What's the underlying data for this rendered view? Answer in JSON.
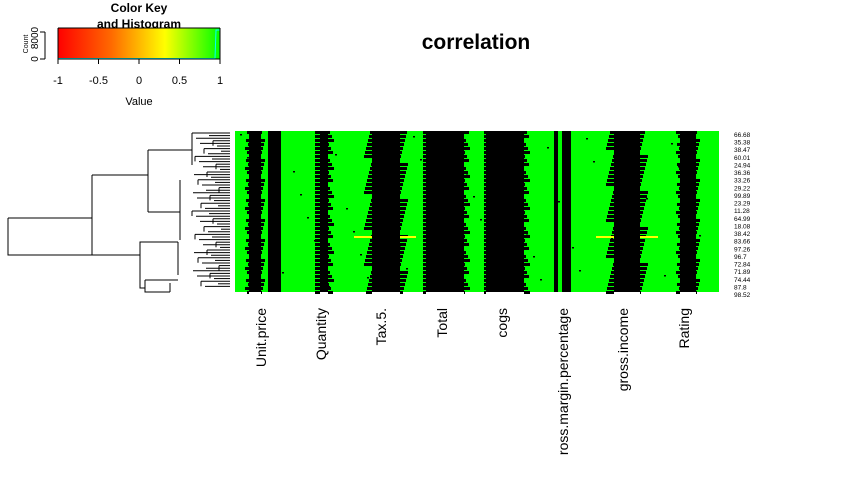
{
  "chart_data": {
    "type": "heatmap",
    "title": "correlation",
    "columns": [
      "Unit.price",
      "Quantity",
      "Tax.5.",
      "Total",
      "cogs",
      "ross.margin.percentage",
      "gross.income",
      "Rating"
    ],
    "row_labels": [
      "66.68",
      "35.38",
      "38.47",
      "60.01",
      "24.94",
      "36.36",
      "33.26",
      "29.22",
      "99.89",
      "23.29",
      "11.28",
      "64.99",
      "18.08",
      "38.42",
      "83.66",
      "97.26",
      "96.7",
      "72.84",
      "71.89",
      "74.44",
      "87.8",
      "98.52"
    ],
    "color_key": {
      "title": "Color Key",
      "subtitle": "and Histogram",
      "xlabel": "Value",
      "ylabel": "Count",
      "x_ticks": [
        "-1",
        "-0.5",
        "0",
        "0.5",
        "1"
      ],
      "y_ticks": [
        "0",
        "8000"
      ],
      "colors": [
        "#ff0000",
        "#ff8000",
        "#ffff00",
        "#00ff00"
      ]
    },
    "colors": {
      "background": "#00ff00",
      "dark": "#000000",
      "highlight": "#ffff00"
    }
  }
}
